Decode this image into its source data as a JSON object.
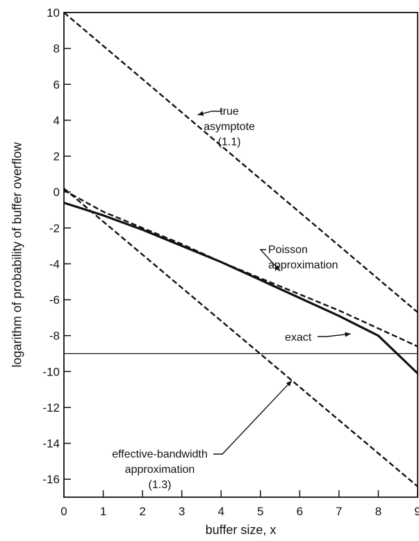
{
  "chart_data": {
    "type": "line",
    "title": "",
    "xlabel": "buffer size, x",
    "ylabel": "logarithm of probability of buffer overflow",
    "xlim": [
      0,
      9
    ],
    "ylim": [
      -17,
      10
    ],
    "x_ticks": [
      "0",
      "1",
      "2",
      "3",
      "4",
      "5",
      "6",
      "7",
      "8",
      "9"
    ],
    "y_ticks": [
      "10",
      "8",
      "6",
      "4",
      "2",
      "0",
      "-2",
      "-4",
      "-6",
      "-8",
      "-10",
      "-12",
      "-14",
      "-16"
    ],
    "grid": false,
    "legend": "none",
    "series": [
      {
        "style": "dashed",
        "x": [
          0,
          9
        ],
        "y": [
          10,
          -6.7
        ]
      },
      {
        "style": "dashed",
        "x": [
          0,
          1,
          2,
          3,
          4,
          5,
          6,
          7,
          8,
          9
        ],
        "y": [
          0.1,
          -1.1,
          -2.0,
          -2.9,
          -3.9,
          -4.8,
          -5.7,
          -6.6,
          -7.6,
          -8.6
        ]
      },
      {
        "style": "dashed",
        "x": [
          0,
          9
        ],
        "y": [
          0.2,
          -16.4
        ]
      },
      {
        "style": "solid-thick",
        "x": [
          0,
          1,
          2,
          3,
          4,
          5,
          6,
          7,
          8,
          9
        ],
        "y": [
          -0.6,
          -1.3,
          -2.1,
          -3.0,
          -3.9,
          -4.9,
          -5.9,
          -6.9,
          -8.0,
          -10.1
        ]
      },
      {
        "style": "solid-thin",
        "x": [
          0,
          9
        ],
        "y": [
          -9,
          -9
        ]
      }
    ],
    "annotations": [
      {
        "lines": [
          "true",
          "asymptote",
          "(1.1)"
        ],
        "points_to": [
          3.4,
          4.3
        ]
      },
      {
        "lines": [
          "Poisson",
          "approximation"
        ],
        "points_to": [
          5.5,
          -4.4
        ]
      },
      {
        "lines": [
          "exact"
        ],
        "points_to": [
          7.3,
          -7.9
        ]
      },
      {
        "lines": [
          "effective-bandwidth",
          "approximation",
          "(1.3)"
        ],
        "points_to": [
          5.8,
          -10.5
        ]
      }
    ]
  }
}
